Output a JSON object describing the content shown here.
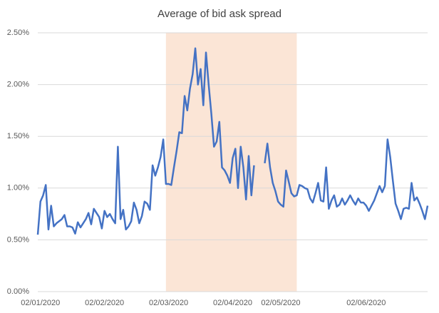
{
  "chart_data": {
    "type": "line",
    "title": "Average of bid ask spread",
    "categories": [
      null,
      "02/01/2020",
      null,
      null,
      null,
      null,
      null,
      null,
      null,
      null,
      null,
      null,
      null,
      null,
      null,
      null,
      null,
      null,
      null,
      null,
      null,
      null,
      null,
      null,
      null,
      "02/02/2020",
      null,
      null,
      null,
      null,
      null,
      null,
      null,
      null,
      null,
      null,
      null,
      null,
      null,
      null,
      null,
      null,
      null,
      null,
      null,
      null,
      null,
      null,
      null,
      "02/03/2020",
      null,
      null,
      null,
      null,
      null,
      null,
      null,
      null,
      null,
      null,
      null,
      null,
      null,
      null,
      null,
      null,
      null,
      null,
      null,
      null,
      null,
      null,
      null,
      "02/04/2020",
      null,
      null,
      null,
      null,
      null,
      null,
      null,
      null,
      null,
      null,
      null,
      null,
      null,
      null,
      null,
      null,
      null,
      "02/05/2020",
      null,
      null,
      null,
      null,
      null,
      null,
      null,
      null,
      null,
      null,
      null,
      null,
      null,
      null,
      null,
      null,
      null,
      null,
      null,
      null,
      null,
      null,
      null,
      null,
      null,
      null,
      null,
      null,
      null,
      null,
      null,
      "02/06/2020",
      null,
      null,
      null,
      null,
      null,
      null,
      null,
      null,
      null,
      null,
      null,
      null,
      null,
      null,
      null,
      null,
      null,
      null,
      null,
      null,
      null,
      null,
      null
    ],
    "series": [
      {
        "name": "Average of bid ask spread",
        "color": "#4472c4",
        "values": [
          0.55,
          0.87,
          0.93,
          1.03,
          0.6,
          0.83,
          0.63,
          0.66,
          0.68,
          0.7,
          0.74,
          0.63,
          0.63,
          0.62,
          0.56,
          0.67,
          0.62,
          0.66,
          0.7,
          0.76,
          0.65,
          0.8,
          0.76,
          0.72,
          0.61,
          0.78,
          0.72,
          0.75,
          0.7,
          0.66,
          1.4,
          0.7,
          0.79,
          0.6,
          0.63,
          0.68,
          0.86,
          0.79,
          0.66,
          0.73,
          0.87,
          0.85,
          0.79,
          1.22,
          1.12,
          1.2,
          1.3,
          1.47,
          1.04,
          1.04,
          1.03,
          1.2,
          1.36,
          1.54,
          1.53,
          1.89,
          1.75,
          1.96,
          2.1,
          2.35,
          2.0,
          2.15,
          1.8,
          2.31,
          2.0,
          1.72,
          1.4,
          1.45,
          1.64,
          1.2,
          1.17,
          1.12,
          1.05,
          1.29,
          1.38,
          1.0,
          1.4,
          1.2,
          0.89,
          1.31,
          0.93,
          1.22,
          null,
          null,
          null,
          1.24,
          1.43,
          1.2,
          1.05,
          0.97,
          0.87,
          0.84,
          0.82,
          1.17,
          1.06,
          0.95,
          0.92,
          0.93,
          1.03,
          1.02,
          1.0,
          0.99,
          0.9,
          0.86,
          0.95,
          1.05,
          0.88,
          0.87,
          1.2,
          0.8,
          0.88,
          0.93,
          0.82,
          0.84,
          0.9,
          0.84,
          0.88,
          0.93,
          0.88,
          0.84,
          0.9,
          0.86,
          0.86,
          0.83,
          0.78,
          0.83,
          0.88,
          0.95,
          1.02,
          0.96,
          1.02,
          1.47,
          1.3,
          1.07,
          0.85,
          0.78,
          0.7,
          0.8,
          0.81,
          0.8,
          1.05,
          0.88,
          0.91,
          0.85,
          0.78,
          0.7,
          0.83
        ]
      }
    ],
    "ylim": [
      0,
      2.5
    ],
    "yticks": [
      {
        "value": 0,
        "label": "0.00%"
      },
      {
        "value": 0.5,
        "label": "0.50%"
      },
      {
        "value": 1,
        "label": "1.00%"
      },
      {
        "value": 1.5,
        "label": "1.50%"
      },
      {
        "value": 2,
        "label": "2.00%"
      },
      {
        "value": 2.5,
        "label": "2.50%"
      }
    ],
    "grid": true,
    "highlight": {
      "from": 48,
      "to": 97,
      "color": "#fbe5d6"
    }
  }
}
